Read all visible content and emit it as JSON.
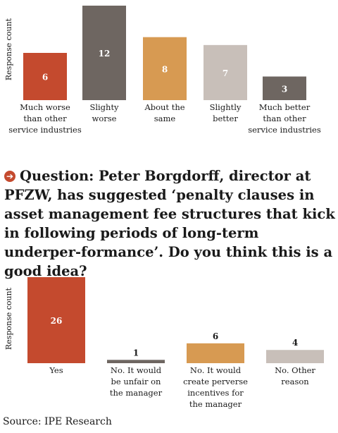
{
  "chart_data": [
    {
      "type": "bar",
      "ylabel": "Response count",
      "categories": [
        [
          "Much worse",
          "than other",
          "service industries"
        ],
        [
          "Slighty",
          "worse"
        ],
        [
          "About the",
          "same"
        ],
        [
          "Slightly",
          "better"
        ],
        [
          "Much better",
          "than other",
          "service industries"
        ]
      ],
      "values": [
        6,
        12,
        8,
        7,
        3
      ],
      "colors": [
        "#c44a2e",
        "#6e6661",
        "#d79a52",
        "#c8bfb9",
        "#6e6661"
      ],
      "ylim": [
        0,
        12
      ]
    },
    {
      "type": "bar",
      "ylabel": "Response count",
      "categories": [
        [
          "Yes"
        ],
        [
          "No. It would",
          "be unfair on",
          "the manager"
        ],
        [
          "No. It would",
          "create perverse",
          "incentives for",
          "the manager"
        ],
        [
          "No. Other",
          "reason"
        ]
      ],
      "values": [
        26,
        1,
        6,
        4
      ],
      "colors": [
        "#c44a2e",
        "#6e6661",
        "#d79a52",
        "#c8bfb9"
      ],
      "ylim": [
        0,
        26
      ]
    }
  ],
  "question": {
    "icon": "arrow-right-circle-icon",
    "text": "Question: Peter Borgdorff, director at PFZW, has suggested ‘penalty clauses in asset management fee structures that kick in following periods of long-term underper-formance’. Do you think this is a good idea?"
  },
  "source": "Source: IPE Research"
}
